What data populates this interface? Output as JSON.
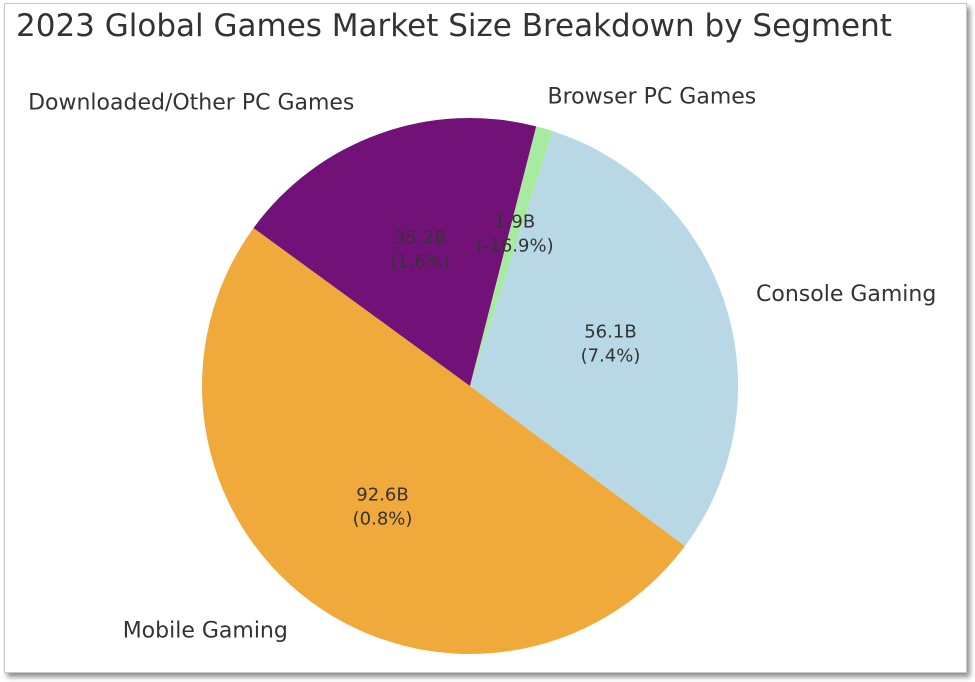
{
  "chart_data": {
    "type": "pie",
    "title": "2023 Global Games Market Size Breakdown by Segment",
    "slices": [
      {
        "label": "Console Gaming",
        "value": 56.1,
        "value_text": "56.1B",
        "growth_text": "(7.4%)",
        "color": "#b7d8e4"
      },
      {
        "label": "Mobile Gaming",
        "value": 92.6,
        "value_text": "92.6B",
        "growth_text": "(0.8%)",
        "color": "#f0a93b"
      },
      {
        "label": "Downloaded/Other PC Games",
        "value": 35.2,
        "value_text": "35.2B",
        "growth_text": "(1.6%)",
        "color": "#721278"
      },
      {
        "label": "Browser PC Games",
        "value": 1.9,
        "value_text": "1.9B",
        "growth_text": "(-16.9%)",
        "color": "#a6eba0"
      }
    ],
    "start_angle_deg": 72,
    "direction": "clockwise",
    "legend": "none"
  }
}
